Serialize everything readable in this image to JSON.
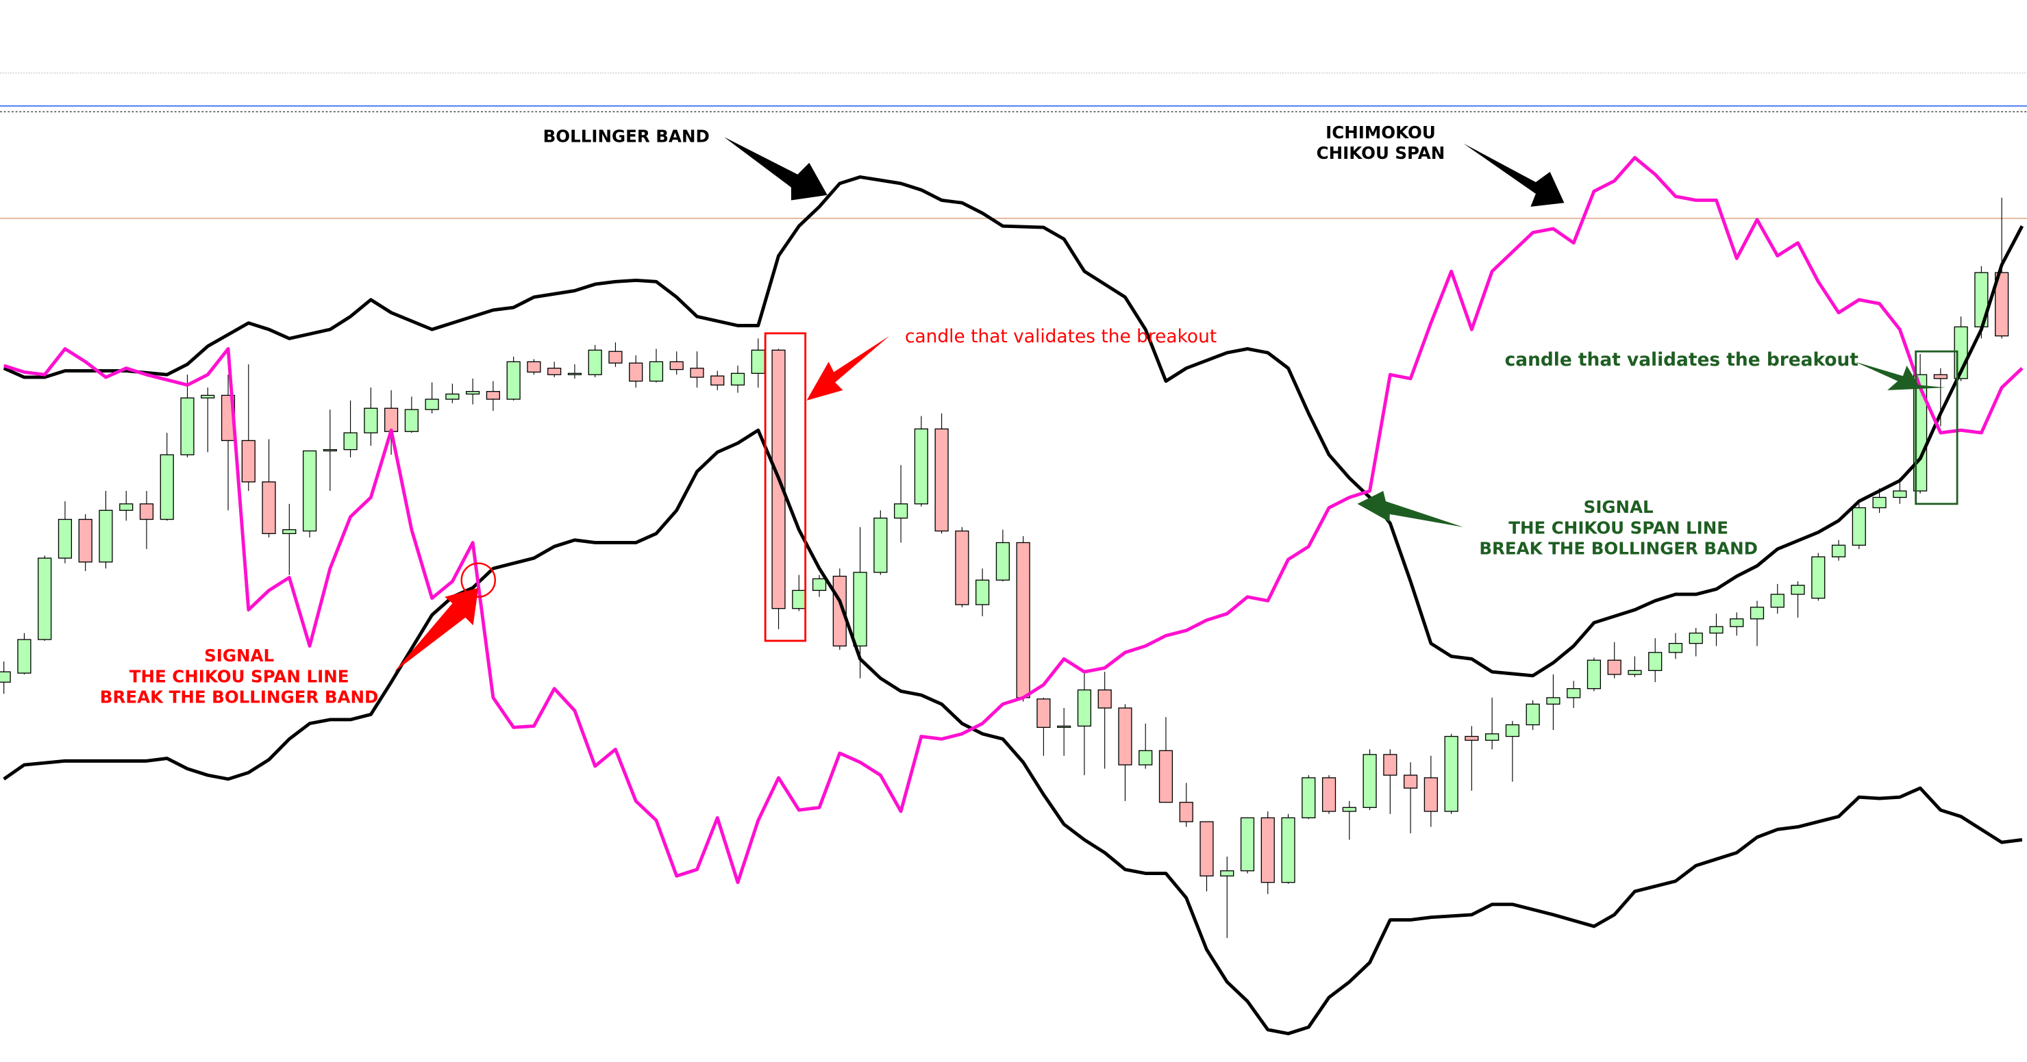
{
  "chart_data": {
    "type": "candlestick",
    "title": "",
    "xlabel": "",
    "ylabel": "",
    "grid": false,
    "colors": {
      "up": "#b3ffb3",
      "down": "#ffb3b3",
      "bands": "#000000",
      "chikou": "#ff10d0",
      "red_note": "#ff0000",
      "green_note": "#1e5e22",
      "hline_gray": "#c8c8c8",
      "hline_blue": "#3a6cf0",
      "hline_tan": "#e0b090"
    },
    "candles_ohlc": [
      [
        472,
        488,
        463,
        480
      ],
      [
        479,
        510,
        478,
        505
      ],
      [
        505,
        570,
        504,
        568
      ],
      [
        568,
        612,
        564,
        598
      ],
      [
        598,
        602,
        558,
        565
      ],
      [
        565,
        620,
        560,
        605
      ],
      [
        605,
        620,
        597,
        610
      ],
      [
        610,
        620,
        575,
        598
      ],
      [
        598,
        665,
        597,
        648
      ],
      [
        648,
        710,
        646,
        692
      ],
      [
        692,
        700,
        650,
        694
      ],
      [
        694,
        710,
        605,
        659
      ],
      [
        659,
        718,
        620,
        627
      ],
      [
        627,
        660,
        584,
        587
      ],
      [
        587,
        610,
        555,
        590
      ],
      [
        589,
        651,
        584,
        651
      ],
      [
        651,
        683,
        620,
        652
      ],
      [
        652,
        690,
        646,
        665
      ],
      [
        665,
        700,
        655,
        684
      ],
      [
        684,
        698,
        648,
        666
      ],
      [
        666,
        693,
        665,
        683
      ],
      [
        683,
        704,
        680,
        691
      ],
      [
        691,
        703,
        688,
        695
      ],
      [
        695,
        707,
        687,
        697
      ],
      [
        697,
        705,
        682,
        691
      ],
      [
        691,
        724,
        690,
        720
      ],
      [
        720,
        722,
        710,
        712
      ],
      [
        715,
        720,
        708,
        710
      ],
      [
        710,
        718,
        707,
        711
      ],
      [
        710,
        733,
        708,
        729
      ],
      [
        728,
        735,
        716,
        719
      ],
      [
        719,
        725,
        700,
        705
      ],
      [
        705,
        730,
        704,
        720
      ],
      [
        720,
        728,
        710,
        714
      ],
      [
        715,
        728,
        700,
        708
      ],
      [
        709,
        713,
        698,
        702
      ],
      [
        702,
        717,
        696,
        711
      ],
      [
        711,
        738,
        700,
        729
      ],
      [
        729,
        730,
        513,
        529
      ],
      [
        529,
        555,
        527,
        543
      ],
      [
        543,
        555,
        538,
        552
      ],
      [
        554,
        560,
        497,
        500
      ],
      [
        500,
        592,
        475,
        557
      ],
      [
        557,
        605,
        555,
        599
      ],
      [
        599,
        640,
        580,
        610
      ],
      [
        610,
        678,
        608,
        668
      ],
      [
        668,
        680,
        587,
        589
      ],
      [
        589,
        592,
        530,
        532
      ],
      [
        532,
        560,
        523,
        551
      ],
      [
        551,
        590,
        550,
        580
      ],
      [
        580,
        585,
        457,
        460
      ],
      [
        459,
        460,
        415,
        437
      ],
      [
        437,
        452,
        415,
        438
      ],
      [
        438,
        480,
        400,
        466
      ],
      [
        466,
        480,
        405,
        452
      ],
      [
        452,
        455,
        380,
        408
      ],
      [
        408,
        440,
        405,
        419
      ],
      [
        419,
        445,
        379,
        379
      ],
      [
        379,
        394,
        360,
        364
      ],
      [
        364,
        364,
        310,
        322
      ],
      [
        322,
        337,
        274,
        326
      ],
      [
        326,
        367,
        324,
        367
      ],
      [
        367,
        372,
        308,
        317
      ],
      [
        317,
        370,
        316,
        367
      ],
      [
        367,
        400,
        366,
        398
      ],
      [
        398,
        400,
        370,
        372
      ],
      [
        372,
        380,
        350,
        375
      ],
      [
        375,
        420,
        373,
        416
      ],
      [
        416,
        420,
        370,
        400
      ],
      [
        400,
        410,
        355,
        390
      ],
      [
        398,
        415,
        360,
        372
      ],
      [
        372,
        432,
        370,
        430
      ],
      [
        430,
        438,
        388,
        427
      ],
      [
        427,
        460,
        420,
        432
      ],
      [
        430,
        442,
        395,
        439
      ],
      [
        439,
        458,
        435,
        455
      ],
      [
        455,
        478,
        435,
        460
      ],
      [
        460,
        473,
        452,
        467
      ],
      [
        467,
        491,
        465,
        489
      ],
      [
        489,
        503,
        475,
        478
      ],
      [
        478,
        492,
        476,
        481
      ],
      [
        481,
        506,
        472,
        495
      ],
      [
        495,
        510,
        490,
        502
      ],
      [
        502,
        514,
        492,
        510
      ],
      [
        510,
        525,
        500,
        515
      ],
      [
        515,
        526,
        508,
        521
      ],
      [
        521,
        535,
        500,
        530
      ],
      [
        530,
        548,
        525,
        540
      ],
      [
        540,
        550,
        522,
        547
      ],
      [
        537,
        572,
        535,
        569
      ],
      [
        569,
        582,
        566,
        578
      ],
      [
        578,
        610,
        575,
        607
      ],
      [
        607,
        622,
        603,
        615
      ],
      [
        615,
        630,
        610,
        620
      ],
      [
        620,
        726,
        618,
        710
      ],
      [
        710,
        715,
        670,
        707
      ],
      [
        707,
        755,
        705,
        747
      ],
      [
        747,
        794,
        738,
        789
      ],
      [
        789,
        847,
        738,
        740
      ]
    ],
    "bollinger_upper": [
      [
        0,
        715
      ],
      [
        1,
        708
      ],
      [
        2,
        708
      ],
      [
        3,
        713
      ],
      [
        5,
        713
      ],
      [
        6,
        713
      ],
      [
        8,
        710
      ],
      [
        9,
        718
      ],
      [
        10,
        732
      ],
      [
        12,
        750
      ],
      [
        13,
        745
      ],
      [
        14,
        738
      ],
      [
        16,
        745
      ],
      [
        17,
        755
      ],
      [
        18,
        768
      ],
      [
        19,
        758
      ],
      [
        21,
        745
      ],
      [
        22,
        750
      ],
      [
        24,
        760
      ],
      [
        25,
        762
      ],
      [
        26,
        770
      ],
      [
        28,
        775
      ],
      [
        29,
        780
      ],
      [
        30,
        782
      ],
      [
        31,
        783
      ],
      [
        32,
        782
      ],
      [
        33,
        770
      ],
      [
        34,
        755
      ],
      [
        36,
        748
      ],
      [
        37,
        748
      ],
      [
        38,
        802
      ],
      [
        39,
        825
      ],
      [
        40,
        840
      ],
      [
        41,
        858
      ],
      [
        42,
        863
      ],
      [
        44,
        858
      ],
      [
        45,
        853
      ],
      [
        46,
        845
      ],
      [
        47,
        843
      ],
      [
        48,
        835
      ],
      [
        49,
        825
      ],
      [
        51,
        824
      ],
      [
        52,
        815
      ],
      [
        53,
        790
      ],
      [
        55,
        770
      ],
      [
        56,
        745
      ],
      [
        57,
        705
      ],
      [
        58,
        715
      ],
      [
        60,
        727
      ],
      [
        61,
        730
      ],
      [
        62,
        727
      ],
      [
        63,
        715
      ],
      [
        64,
        680
      ],
      [
        65,
        648
      ],
      [
        66,
        630
      ],
      [
        67,
        615
      ],
      [
        68,
        595
      ],
      [
        69,
        550
      ],
      [
        70,
        502
      ],
      [
        71,
        492
      ],
      [
        72,
        490
      ],
      [
        73,
        480
      ],
      [
        75,
        477
      ],
      [
        76,
        487
      ],
      [
        77,
        500
      ],
      [
        78,
        518
      ],
      [
        80,
        528
      ],
      [
        81,
        535
      ],
      [
        82,
        540
      ],
      [
        83,
        540
      ],
      [
        84,
        544
      ],
      [
        85,
        554
      ],
      [
        86,
        562
      ],
      [
        87,
        575
      ],
      [
        89,
        588
      ],
      [
        90,
        597
      ],
      [
        91,
        612
      ],
      [
        93,
        628
      ],
      [
        94,
        645
      ],
      [
        95,
        680
      ],
      [
        97,
        745
      ],
      [
        98,
        795
      ],
      [
        99,
        825
      ]
    ],
    "bollinger_lower": [
      [
        0,
        397
      ],
      [
        1,
        408
      ],
      [
        3,
        411
      ],
      [
        7,
        411
      ],
      [
        8,
        413
      ],
      [
        9,
        405
      ],
      [
        10,
        400
      ],
      [
        11,
        397
      ],
      [
        12,
        402
      ],
      [
        13,
        412
      ],
      [
        14,
        428
      ],
      [
        15,
        440
      ],
      [
        16,
        443
      ],
      [
        17,
        443
      ],
      [
        18,
        447
      ],
      [
        19,
        472
      ],
      [
        20,
        498
      ],
      [
        21,
        524
      ],
      [
        22,
        538
      ],
      [
        23,
        545
      ],
      [
        24,
        560
      ],
      [
        25,
        564
      ],
      [
        26,
        568
      ],
      [
        27,
        577
      ],
      [
        28,
        582
      ],
      [
        29,
        580
      ],
      [
        31,
        580
      ],
      [
        32,
        587
      ],
      [
        33,
        605
      ],
      [
        34,
        635
      ],
      [
        35,
        650
      ],
      [
        36,
        657
      ],
      [
        37,
        667
      ],
      [
        38,
        630
      ],
      [
        39,
        590
      ],
      [
        40,
        560
      ],
      [
        41,
        535
      ],
      [
        42,
        490
      ],
      [
        43,
        475
      ],
      [
        44,
        465
      ],
      [
        45,
        462
      ],
      [
        46,
        455
      ],
      [
        47,
        440
      ],
      [
        48,
        432
      ],
      [
        49,
        428
      ],
      [
        50,
        410
      ],
      [
        51,
        385
      ],
      [
        52,
        362
      ],
      [
        53,
        350
      ],
      [
        54,
        340
      ],
      [
        55,
        327
      ],
      [
        56,
        324
      ],
      [
        57,
        324
      ],
      [
        58,
        305
      ],
      [
        59,
        265
      ],
      [
        60,
        240
      ],
      [
        61,
        225
      ],
      [
        62,
        203
      ],
      [
        63,
        200
      ],
      [
        64,
        205
      ],
      [
        65,
        228
      ],
      [
        66,
        240
      ],
      [
        67,
        255
      ],
      [
        68,
        288
      ],
      [
        69,
        288
      ],
      [
        70,
        290
      ],
      [
        72,
        292
      ],
      [
        73,
        300
      ],
      [
        74,
        300
      ],
      [
        76,
        292
      ],
      [
        78,
        283
      ],
      [
        79,
        292
      ],
      [
        80,
        310
      ],
      [
        82,
        318
      ],
      [
        83,
        330
      ],
      [
        84,
        335
      ],
      [
        85,
        340
      ],
      [
        86,
        352
      ],
      [
        87,
        358
      ],
      [
        88,
        360
      ],
      [
        90,
        368
      ],
      [
        91,
        383
      ],
      [
        92,
        382
      ],
      [
        93,
        383
      ],
      [
        94,
        390
      ],
      [
        95,
        373
      ],
      [
        96,
        368
      ],
      [
        98,
        348
      ],
      [
        99,
        350
      ]
    ],
    "chikou_span": [
      [
        0,
        717
      ],
      [
        1,
        712
      ],
      [
        2,
        710
      ],
      [
        3,
        730
      ],
      [
        4,
        720
      ],
      [
        5,
        708
      ],
      [
        6,
        715
      ],
      [
        7,
        710
      ],
      [
        9,
        702
      ],
      [
        10,
        710
      ],
      [
        11,
        730
      ],
      [
        12,
        528
      ],
      [
        13,
        543
      ],
      [
        14,
        553
      ],
      [
        15,
        500
      ],
      [
        16,
        560
      ],
      [
        17,
        600
      ],
      [
        18,
        615
      ],
      [
        19,
        667
      ],
      [
        20,
        590
      ],
      [
        21,
        537
      ],
      [
        22,
        550
      ],
      [
        23,
        580
      ],
      [
        24,
        460
      ],
      [
        25,
        437
      ],
      [
        26,
        438
      ],
      [
        27,
        467
      ],
      [
        28,
        450
      ],
      [
        29,
        407
      ],
      [
        30,
        420
      ],
      [
        31,
        380
      ],
      [
        32,
        365
      ],
      [
        33,
        322
      ],
      [
        34,
        327
      ],
      [
        35,
        367
      ],
      [
        36,
        317
      ],
      [
        37,
        365
      ],
      [
        38,
        398
      ],
      [
        39,
        373
      ],
      [
        40,
        375
      ],
      [
        41,
        417
      ],
      [
        42,
        410
      ],
      [
        43,
        400
      ],
      [
        44,
        372
      ],
      [
        45,
        430
      ],
      [
        46,
        428
      ],
      [
        47,
        432
      ],
      [
        48,
        440
      ],
      [
        49,
        455
      ],
      [
        50,
        460
      ],
      [
        51,
        470
      ],
      [
        52,
        490
      ],
      [
        53,
        480
      ],
      [
        54,
        483
      ],
      [
        55,
        495
      ],
      [
        56,
        500
      ],
      [
        57,
        508
      ],
      [
        58,
        512
      ],
      [
        59,
        520
      ],
      [
        60,
        525
      ],
      [
        61,
        538
      ],
      [
        62,
        535
      ],
      [
        63,
        567
      ],
      [
        64,
        577
      ],
      [
        65,
        607
      ],
      [
        66,
        615
      ],
      [
        67,
        620
      ],
      [
        68,
        710
      ],
      [
        69,
        707
      ],
      [
        70,
        750
      ],
      [
        71,
        790
      ],
      [
        72,
        745
      ],
      [
        73,
        790
      ],
      [
        75,
        820
      ],
      [
        76,
        823
      ],
      [
        77,
        812
      ],
      [
        78,
        852
      ],
      [
        79,
        860
      ],
      [
        80,
        878
      ],
      [
        81,
        865
      ],
      [
        82,
        848
      ],
      [
        83,
        845
      ],
      [
        84,
        845
      ],
      [
        85,
        800
      ],
      [
        86,
        830
      ],
      [
        87,
        802
      ],
      [
        88,
        812
      ],
      [
        89,
        782
      ],
      [
        90,
        758
      ],
      [
        91,
        768
      ],
      [
        92,
        765
      ],
      [
        93,
        745
      ],
      [
        94,
        700
      ],
      [
        95,
        665
      ],
      [
        96,
        667
      ],
      [
        97,
        665
      ],
      [
        98,
        700
      ],
      [
        99,
        715
      ]
    ],
    "annotations": {
      "bollinger_label": "BOLLINGER BAND",
      "ichimoku_label_1": "ICHIMOKOU",
      "ichimoku_label_2": "CHIKOU SPAN",
      "red_candle_note": "candle that validates the breakout",
      "red_signal_1": "SIGNAL",
      "red_signal_2": "THE CHIKOU SPAN LINE",
      "red_signal_3": "BREAK THE BOLLINGER BAND",
      "green_candle_note": "candle that validates the breakout",
      "green_signal_1": "SIGNAL",
      "green_signal_2": "THE CHIKOU SPAN LINE",
      "green_signal_3": "BREAK THE BOLLINGER BAND"
    }
  }
}
